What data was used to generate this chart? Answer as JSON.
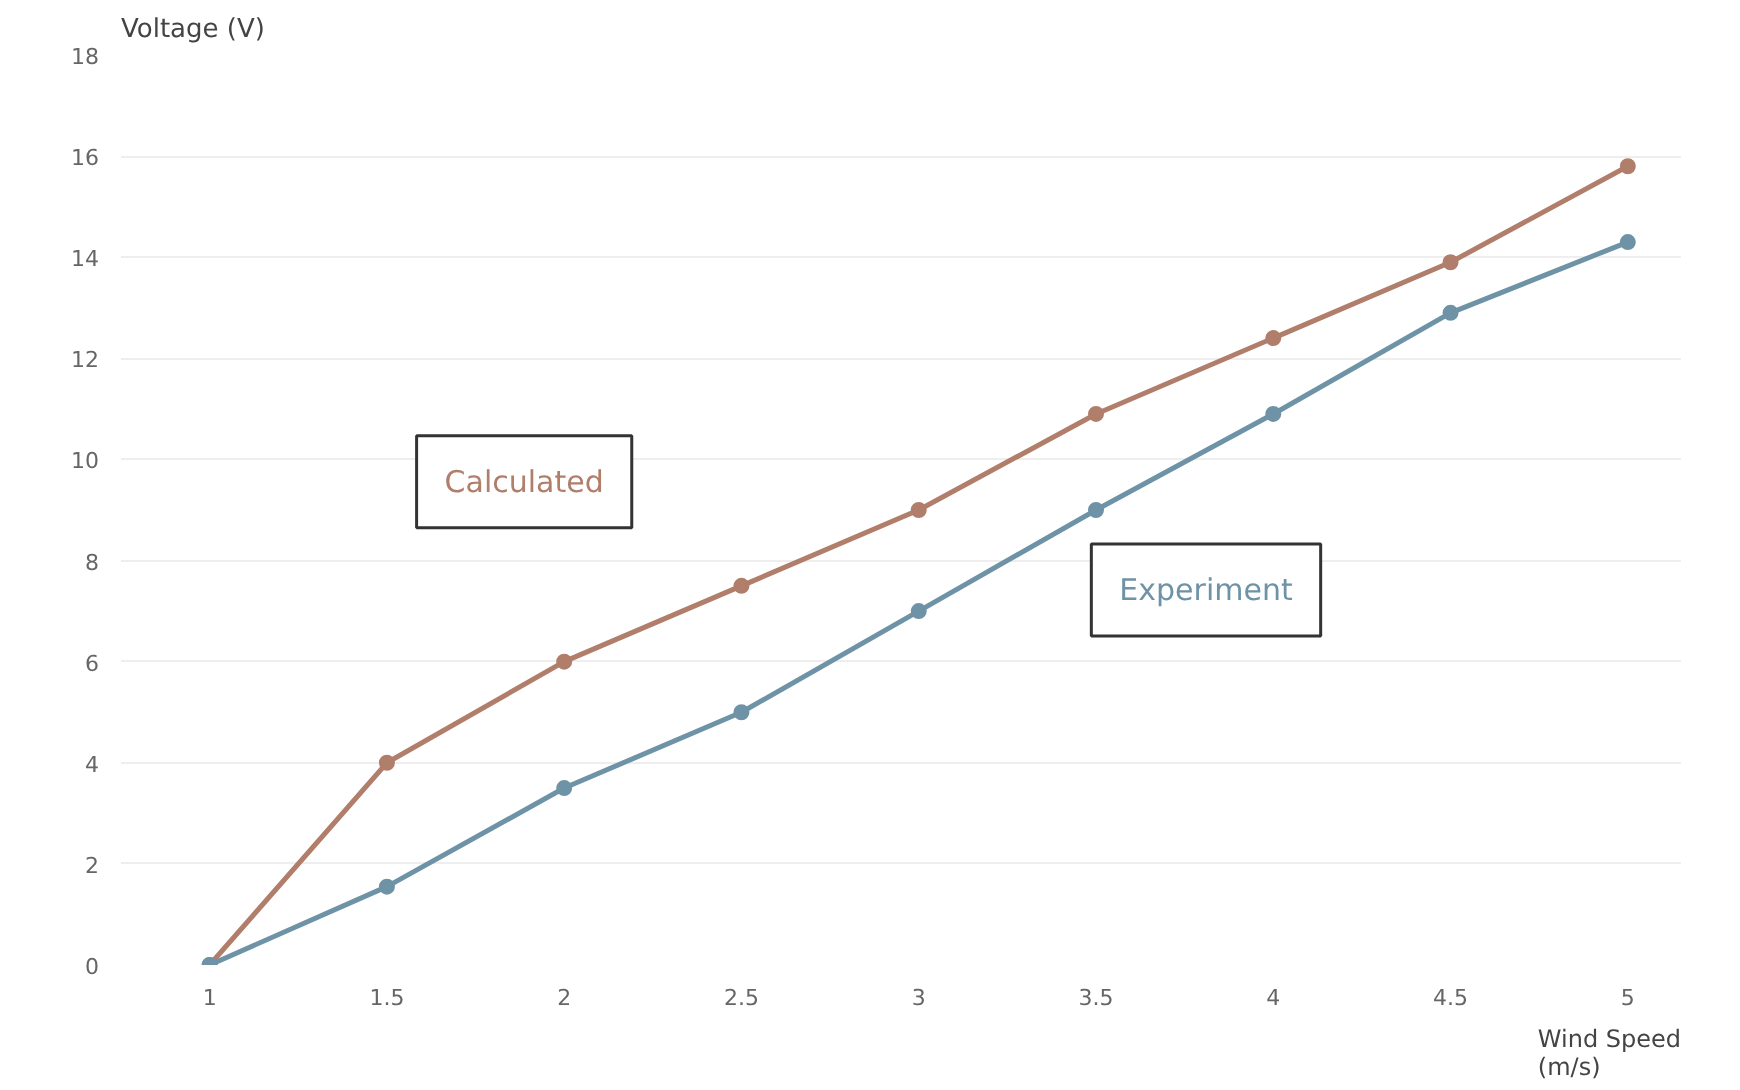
{
  "chart_data": {
    "type": "line",
    "xlabel": "Wind Speed\n(m/s)",
    "ylabel": "Voltage (V)",
    "x": [
      1,
      1.5,
      2,
      2.5,
      3,
      3.5,
      4,
      4.5,
      5
    ],
    "series": [
      {
        "name": "Calculated",
        "color": "#b07e6a",
        "values": [
          0,
          4,
          6,
          7.5,
          9,
          10.9,
          12.4,
          13.9,
          15.8
        ]
      },
      {
        "name": "Experiment",
        "color": "#6e93a6",
        "values": [
          0,
          1.55,
          3.5,
          5,
          7,
          9,
          10.9,
          12.9,
          14.3
        ]
      }
    ],
    "xlim": [
      0.75,
      5.15
    ],
    "ylim": [
      0,
      18
    ],
    "xticks": [
      1,
      1.5,
      2,
      2.5,
      3,
      3.5,
      4,
      4.5,
      5
    ],
    "yticks": [
      0,
      2,
      4,
      6,
      8,
      10,
      12,
      14,
      16,
      18
    ],
    "grid": "y",
    "marker": "circle",
    "line_style": "solid"
  }
}
